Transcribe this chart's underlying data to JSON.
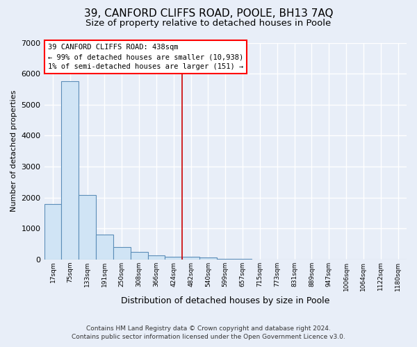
{
  "title": "39, CANFORD CLIFFS ROAD, POOLE, BH13 7AQ",
  "subtitle": "Size of property relative to detached houses in Poole",
  "xlabel": "Distribution of detached houses by size in Poole",
  "ylabel": "Number of detached properties",
  "footer_line1": "Contains HM Land Registry data © Crown copyright and database right 2024.",
  "footer_line2": "Contains public sector information licensed under the Open Government Licence v3.0.",
  "bar_labels": [
    "17sqm",
    "75sqm",
    "133sqm",
    "191sqm",
    "250sqm",
    "308sqm",
    "366sqm",
    "424sqm",
    "482sqm",
    "540sqm",
    "599sqm",
    "657sqm",
    "715sqm",
    "773sqm",
    "831sqm",
    "889sqm",
    "947sqm",
    "1006sqm",
    "1064sqm",
    "1122sqm",
    "1180sqm"
  ],
  "bar_values": [
    1780,
    5760,
    2080,
    810,
    390,
    240,
    130,
    90,
    90,
    55,
    25,
    10,
    5,
    0,
    0,
    0,
    0,
    0,
    0,
    0,
    0
  ],
  "bar_color": "#d0e4f5",
  "bar_edge_color": "#5b8db8",
  "vline_x": 7.5,
  "vline_color": "#cc0000",
  "annotation_line1": "39 CANFORD CLIFFS ROAD: 438sqm",
  "annotation_line2": "← 99% of detached houses are smaller (10,938)",
  "annotation_line3": "1% of semi-detached houses are larger (151) →",
  "ylim": [
    0,
    7000
  ],
  "yticks": [
    0,
    1000,
    2000,
    3000,
    4000,
    5000,
    6000,
    7000
  ],
  "background_color": "#e8eef8",
  "grid_color": "#ffffff",
  "title_fontsize": 11,
  "subtitle_fontsize": 9.5,
  "xlabel_fontsize": 9,
  "ylabel_fontsize": 8,
  "tick_fontsize": 8,
  "xtick_fontsize": 6.5,
  "footer_fontsize": 6.5
}
